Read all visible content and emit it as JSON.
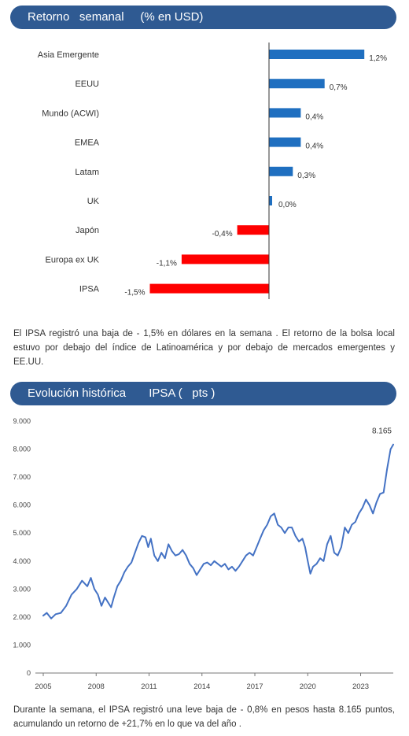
{
  "section1": {
    "title": "Retorno   semanal     (% en USD)"
  },
  "section2": {
    "title": "Evolución histórica       IPSA (   pts )"
  },
  "paragraph1": "El IPSA registró  una baja  de - 1,5% en dólares  en la semana  . El retorno de la bolsa local estuvo  por debajo  del índice de Latinoamérica   y por debajo  de mercados emergentes    y EE.UU.",
  "paragraph2": "Durante la semana,  el IPSA registró  una leve baja de - 0,8% en pesos  hasta 8.165 puntos,  acumulando   un retorno de +21,7% en lo que va del año .",
  "colors": {
    "header": "#2f5a92",
    "positive": "#1f6fc0",
    "negative": "#ff0000",
    "line": "#4472c4"
  },
  "chart_data": [
    {
      "type": "bar",
      "orientation": "horizontal",
      "categories": [
        "Asia Emergente",
        "EEUU",
        "Mundo (ACWI)",
        "EMEA",
        "Latam",
        "UK",
        "Japón",
        "Europa ex UK",
        "IPSA"
      ],
      "values": [
        1.2,
        0.7,
        0.4,
        0.4,
        0.3,
        0.0,
        -0.4,
        -1.1,
        -1.5
      ],
      "labels": [
        "1,2%",
        "0,7%",
        "0,4%",
        "0,4%",
        "0,3%",
        "0,0%",
        "-0,4%",
        "-1,1%",
        "-1,5%"
      ],
      "title": "Retorno   semanal     (% en USD)",
      "positive_color": "#1f6fc0",
      "negative_color": "#ff0000"
    },
    {
      "type": "line",
      "title": "Evolución histórica       IPSA (   pts )",
      "x_ticks": [
        "2005",
        "2008",
        "2011",
        "2014",
        "2017",
        "2020",
        "2023"
      ],
      "y_ticks": [
        "0",
        "1.000",
        "2.000",
        "3.000",
        "4.000",
        "5.000",
        "6.000",
        "7.000",
        "8.000",
        "9.000"
      ],
      "ylim": [
        0,
        9000
      ],
      "xlim": [
        2005.0,
        2024.85
      ],
      "last_value_label": "8.165",
      "series": [
        {
          "x": [
            2005.0,
            2005.2,
            2005.45,
            2005.7,
            2006.0,
            2006.3,
            2006.6,
            2006.9,
            2007.2,
            2007.5,
            2007.7,
            2007.9,
            2008.1,
            2008.3,
            2008.5,
            2008.7,
            2008.85,
            2009.0,
            2009.2,
            2009.4,
            2009.6,
            2009.8,
            2010.0,
            2010.2,
            2010.4,
            2010.6,
            2010.8,
            2010.95,
            2011.1,
            2011.3,
            2011.5,
            2011.7,
            2011.9,
            2012.1,
            2012.3,
            2012.5,
            2012.7,
            2012.9,
            2013.1,
            2013.3,
            2013.5,
            2013.7,
            2013.9,
            2014.1,
            2014.3,
            2014.5,
            2014.7,
            2014.9,
            2015.1,
            2015.3,
            2015.5,
            2015.7,
            2015.9,
            2016.1,
            2016.3,
            2016.5,
            2016.7,
            2016.9,
            2017.1,
            2017.3,
            2017.5,
            2017.7,
            2017.9,
            2018.1,
            2018.3,
            2018.5,
            2018.7,
            2018.9,
            2019.1,
            2019.3,
            2019.5,
            2019.7,
            2019.85,
            2020.0,
            2020.15,
            2020.3,
            2020.5,
            2020.7,
            2020.9,
            2021.1,
            2021.3,
            2021.5,
            2021.7,
            2021.9,
            2022.1,
            2022.3,
            2022.5,
            2022.7,
            2022.9,
            2023.1,
            2023.3,
            2023.5,
            2023.7,
            2023.9,
            2024.1,
            2024.3,
            2024.5,
            2024.7,
            2024.85
          ],
          "y": [
            2050,
            2150,
            1950,
            2100,
            2150,
            2400,
            2800,
            3000,
            3300,
            3100,
            3400,
            3000,
            2800,
            2400,
            2700,
            2500,
            2350,
            2700,
            3100,
            3300,
            3600,
            3800,
            3950,
            4300,
            4650,
            4900,
            4850,
            4500,
            4800,
            4200,
            4000,
            4300,
            4100,
            4600,
            4350,
            4200,
            4250,
            4400,
            4200,
            3900,
            3750,
            3500,
            3700,
            3900,
            3950,
            3850,
            4000,
            3900,
            3800,
            3900,
            3700,
            3800,
            3650,
            3800,
            4000,
            4200,
            4300,
            4200,
            4500,
            4800,
            5100,
            5300,
            5600,
            5700,
            5300,
            5200,
            5000,
            5200,
            5200,
            4900,
            4700,
            4800,
            4500,
            4000,
            3550,
            3800,
            3900,
            4100,
            4000,
            4600,
            4900,
            4300,
            4200,
            4500,
            5200,
            5000,
            5300,
            5400,
            5700,
            5900,
            6200,
            6000,
            5700,
            6100,
            6400,
            6450,
            7300,
            8000,
            8165
          ]
        }
      ]
    }
  ]
}
